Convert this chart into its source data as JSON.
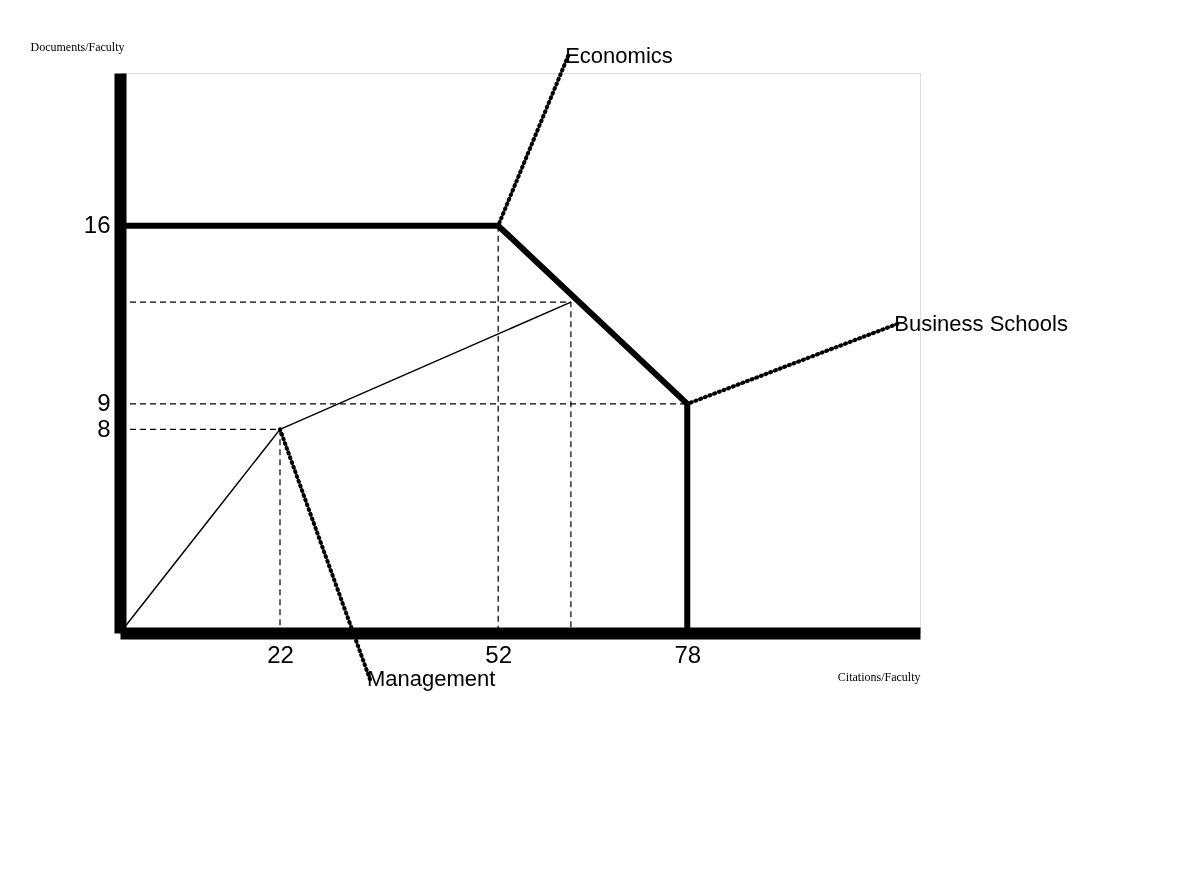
{
  "chart_data": {
    "type": "line",
    "xlabel": "Citations/Faculty",
    "ylabel": "Documents/Faculty",
    "xlim": [
      0,
      110
    ],
    "ylim": [
      0,
      22
    ],
    "xticks": [
      22,
      52,
      78
    ],
    "yticks": [
      8,
      9,
      16
    ],
    "grid": false,
    "series": [
      {
        "color": "#000000",
        "line_style": "solid",
        "x": [
          0,
          52,
          78,
          78
        ],
        "values": [
          16,
          16,
          9,
          0
        ]
      },
      {
        "color": "#000000",
        "line_style": "solid",
        "x": [
          0,
          22,
          62
        ],
        "values": [
          0,
          8,
          13
        ]
      },
      {
        "color": "#000000",
        "line_style": "dashed",
        "x": [
          52,
          52
        ],
        "values": [
          16,
          0
        ]
      },
      {
        "color": "#000000",
        "line_style": "dashed",
        "x": [
          0,
          62,
          62
        ],
        "values": [
          13,
          13,
          0
        ]
      },
      {
        "color": "#000000",
        "line_style": "dashed",
        "x": [
          0,
          78
        ],
        "values": [
          9,
          9
        ]
      },
      {
        "color": "#000000",
        "line_style": "dashed",
        "x": [
          0,
          22,
          22
        ],
        "values": [
          8,
          8,
          0
        ]
      }
    ],
    "annotations": [
      {
        "text": "Economics",
        "x": 52,
        "y": 16
      },
      {
        "text": "Business Schools",
        "x": 78,
        "y": 9
      },
      {
        "text": "Management",
        "x": 22,
        "y": 8
      }
    ]
  }
}
